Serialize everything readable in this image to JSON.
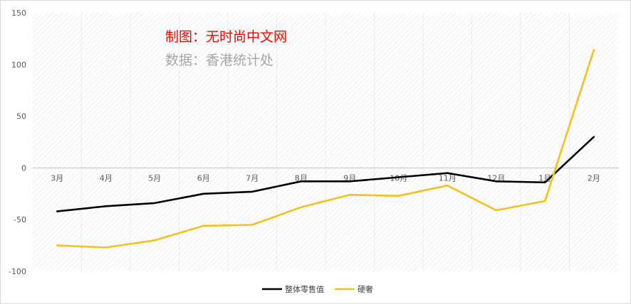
{
  "credits": {
    "maker": "制图：无时尚中文网",
    "source": "数据：香港统计处"
  },
  "colors": {
    "series_total": "#000000",
    "series_jewelry": "#f5bf1d",
    "maker_text": "#ff0000",
    "source_text": "#a6a6a6",
    "axis_text": "#595959"
  },
  "chart_data": {
    "type": "line",
    "categories": [
      "3月",
      "4月",
      "5月",
      "6月",
      "7月",
      "8月",
      "9月",
      "10月",
      "11月",
      "12月",
      "1月",
      "2月"
    ],
    "series": [
      {
        "name": "整体零售值",
        "values": [
          -42,
          -37,
          -34,
          -25,
          -23,
          -13,
          -13,
          -9,
          -5,
          -13,
          -14,
          30
        ]
      },
      {
        "name": "硬奢",
        "values": [
          -75,
          -77,
          -70,
          -56,
          -55,
          -38,
          -26,
          -27,
          -17,
          -41,
          -32,
          114
        ]
      }
    ],
    "y_ticks": [
      "150",
      "100",
      "50",
      "0",
      "-50",
      "-100"
    ],
    "ylim": [
      -100,
      150
    ],
    "grid": false,
    "legend_position": "bottom"
  }
}
